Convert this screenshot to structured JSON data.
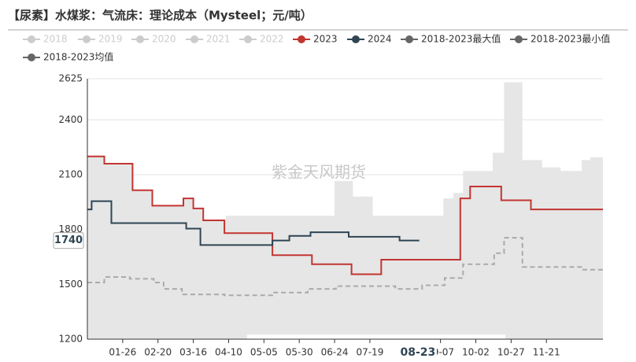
{
  "chart_data": {
    "type": "line",
    "title": "【尿素】水煤浆：气流床：理论成本（Mysteel；元/吨）",
    "watermark": "紫金天风期货",
    "xlim": [
      0,
      365
    ],
    "xticks": [
      {
        "value": 25,
        "label": "01-26"
      },
      {
        "value": 50,
        "label": "02-20"
      },
      {
        "value": 75,
        "label": "03-16"
      },
      {
        "value": 100,
        "label": "04-10"
      },
      {
        "value": 125,
        "label": "05-05"
      },
      {
        "value": 150,
        "label": "05-30"
      },
      {
        "value": 175,
        "label": "06-24"
      },
      {
        "value": 200,
        "label": "07-19"
      },
      {
        "value": 250,
        "label": "09-07"
      },
      {
        "value": 275,
        "label": "10-02"
      },
      {
        "value": 300,
        "label": "10-27"
      },
      {
        "value": 325,
        "label": "11-21"
      }
    ],
    "ylim": [
      1200,
      2625
    ],
    "yticks": [
      1200,
      1500,
      1800,
      2100,
      2400,
      2625
    ],
    "grid": true,
    "axis_pointer": {
      "x": {
        "value": 234,
        "label": "08-23"
      },
      "y": 1740
    },
    "series": [
      {
        "name": "2018",
        "color": "#cccccc",
        "visible": false
      },
      {
        "name": "2019",
        "color": "#cccccc",
        "visible": false
      },
      {
        "name": "2020",
        "color": "#cccccc",
        "visible": false
      },
      {
        "name": "2021",
        "color": "#cccccc",
        "visible": false
      },
      {
        "name": "2022",
        "color": "#cccccc",
        "visible": false
      },
      {
        "name": "2023",
        "color": "#c23531",
        "visible": true,
        "draw": "step",
        "x": [
          0,
          12,
          32,
          46,
          68,
          75,
          82,
          97,
          131,
          159,
          187,
          208,
          264,
          271,
          293,
          314,
          365
        ],
        "values": [
          2200,
          2160,
          2015,
          1930,
          1970,
          1915,
          1850,
          1780,
          1660,
          1610,
          1555,
          1635,
          1970,
          2035,
          1960,
          1910,
          1910
        ]
      },
      {
        "name": "2024",
        "color": "#2f4554",
        "visible": true,
        "draw": "step",
        "x": [
          0,
          3,
          17,
          70,
          80,
          131,
          143,
          158,
          185,
          221,
          235
        ],
        "values": [
          1910,
          1955,
          1835,
          1805,
          1715,
          1740,
          1765,
          1785,
          1760,
          1740,
          1740
        ]
      },
      {
        "name": "2018-2023最大值",
        "color": "#666666",
        "visible": true,
        "draw": "band-upper",
        "fill": "#e6e6e6",
        "x": [
          0,
          12,
          32,
          46,
          68,
          75,
          82,
          98,
          175,
          188,
          202,
          252,
          259,
          266,
          287,
          295,
          308,
          322,
          335,
          350,
          356,
          365
        ],
        "values": [
          2200,
          2160,
          2015,
          1930,
          1970,
          1915,
          1850,
          1875,
          2065,
          1980,
          1875,
          1970,
          2000,
          2120,
          2220,
          2605,
          2180,
          2140,
          2120,
          2180,
          2195,
          2195
        ]
      },
      {
        "name": "2018-2023最小值",
        "color": "#666666",
        "visible": true,
        "draw": "band-lower",
        "x": [
          0,
          113,
          296,
          365
        ],
        "values": [
          1200,
          1225,
          1200,
          1200
        ]
      },
      {
        "name": "2018-2023均值",
        "color": "#666666",
        "visible": true,
        "draw": "dashed-step",
        "line_color": "#aaaaaa",
        "x": [
          0,
          12,
          30,
          47,
          54,
          67,
          97,
          131,
          156,
          176,
          218,
          237,
          253,
          266,
          288,
          295,
          308,
          351,
          365
        ],
        "values": [
          1510,
          1540,
          1530,
          1510,
          1475,
          1445,
          1440,
          1455,
          1475,
          1490,
          1475,
          1495,
          1535,
          1610,
          1670,
          1755,
          1595,
          1580,
          1580
        ]
      }
    ]
  }
}
